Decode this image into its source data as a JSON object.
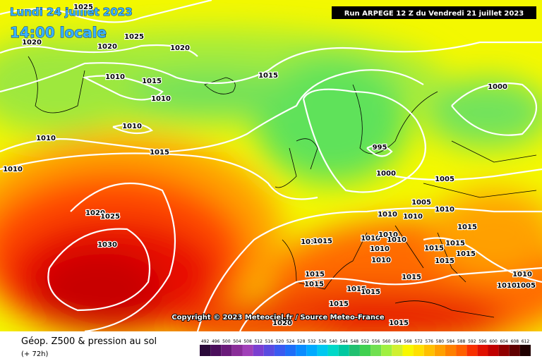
{
  "header": {
    "date": "Lundi 24 juillet 2023",
    "time": "14:00 locale",
    "run": "Run ARPEGE 12 Z du Vendredi 21 juillet 2023"
  },
  "map": {
    "isobar_labels": [
      1025,
      1025,
      1020,
      1020,
      1020,
      1015,
      1010,
      1015,
      1010,
      1010,
      1010,
      1015,
      1010,
      1000,
      995,
      1000,
      1005,
      1005,
      1010,
      1010,
      1010,
      1015,
      1020,
      1025,
      1030,
      1010,
      1015,
      1010,
      1010,
      1010,
      1010,
      1015,
      1015,
      1015,
      1010,
      1015,
      1015,
      1015,
      1010,
      1015,
      1010,
      1005,
      1015,
      1015,
      1015,
      1015,
      1020
    ],
    "copyright": "Copyright © 2023 Meteociel.fr / Source Meteo-France"
  },
  "legend": {
    "title": "Géop. Z500 & pression au sol",
    "subtitle": "(+ 72h)",
    "scale": {
      "values": [
        492,
        496,
        500,
        504,
        508,
        512,
        516,
        520,
        524,
        528,
        532,
        536,
        540,
        544,
        548,
        552,
        556,
        560,
        564,
        568,
        572,
        576,
        580,
        584,
        588,
        592,
        596,
        600,
        604,
        608,
        612
      ],
      "colors": [
        "#2a0a3a",
        "#4b0f5c",
        "#6a1b7a",
        "#8a2d99",
        "#a040b8",
        "#7b3fd0",
        "#5a4be0",
        "#3a5af0",
        "#1e6ef8",
        "#0a8cff",
        "#00aaff",
        "#00c8f0",
        "#00d8c8",
        "#00c8a0",
        "#20c070",
        "#40d050",
        "#70e050",
        "#a0f040",
        "#d0f030",
        "#f8f800",
        "#ffe000",
        "#ffc000",
        "#ffa000",
        "#ff8000",
        "#ff6000",
        "#f83000",
        "#e01000",
        "#c00000",
        "#900000",
        "#600000",
        "#200000"
      ]
    }
  }
}
